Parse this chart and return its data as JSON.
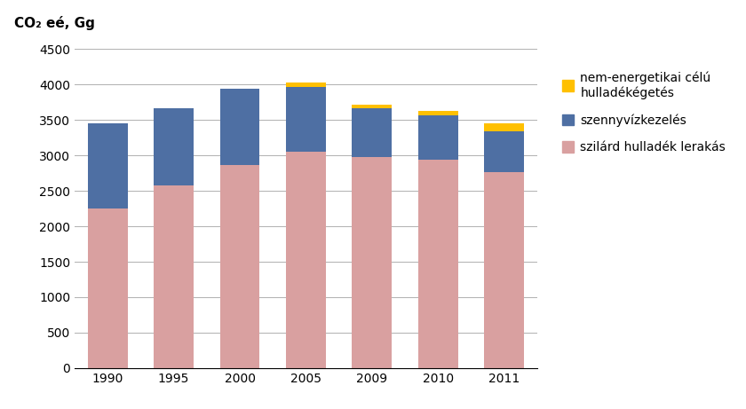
{
  "years": [
    "1990",
    "1995",
    "2000",
    "2005",
    "2009",
    "2010",
    "2011"
  ],
  "solid_waste": [
    2250,
    2580,
    2870,
    3050,
    2980,
    2940,
    2760
  ],
  "wastewater": [
    1200,
    1090,
    1070,
    920,
    680,
    620,
    580
  ],
  "incineration": [
    0,
    0,
    0,
    55,
    55,
    65,
    110
  ],
  "color_solid": "#d9a0a0",
  "color_wastewater": "#4e6fa3",
  "color_incineration": "#ffc000",
  "ylabel": "CO₂ eé, Gg",
  "ylim": [
    0,
    4500
  ],
  "yticks": [
    0,
    500,
    1000,
    1500,
    2000,
    2500,
    3000,
    3500,
    4000,
    4500
  ],
  "legend_solid": "szilárd hulladék lerakás",
  "legend_wastewater": "szennyvízkezelés",
  "legend_incineration": "nem-energetikai célú\nhulladékégetés",
  "background_color": "#ffffff",
  "grid_color": "#b0b0b0"
}
